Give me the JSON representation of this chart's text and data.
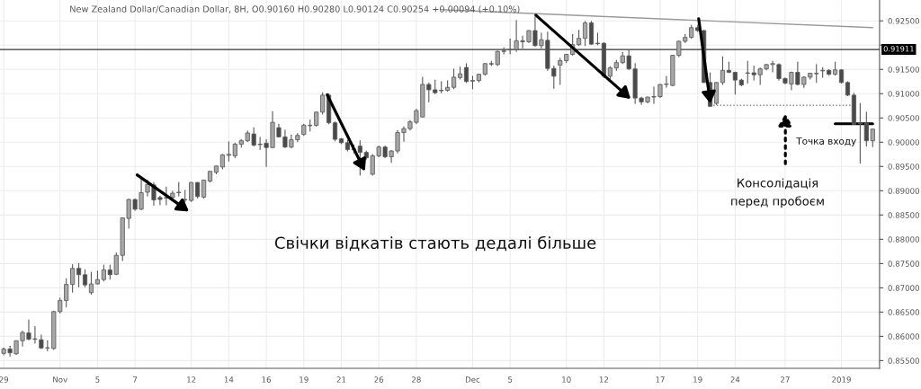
{
  "chart_data": {
    "type": "candlestick",
    "title": "New Zealand Dollar/Canadian Dollar, 8H, O0.90160 H0.90280 L0.90124 C0.90254 +0.00094 (+0.10%)",
    "categories": [
      "29",
      null,
      null,
      null,
      null,
      null,
      null,
      null,
      null,
      "Nov",
      null,
      null,
      null,
      null,
      null,
      "5",
      null,
      null,
      null,
      null,
      null,
      "7",
      null,
      null,
      null,
      null,
      null,
      null,
      null,
      null,
      "12",
      null,
      null,
      null,
      null,
      null,
      "14",
      null,
      null,
      null,
      null,
      null,
      "16",
      null,
      null,
      null,
      null,
      null,
      "19",
      null,
      null,
      null,
      null,
      null,
      "21",
      null,
      null,
      null,
      null,
      null,
      "26",
      null,
      null,
      null,
      null,
      null,
      "28",
      null,
      null,
      null,
      null,
      null,
      null,
      null,
      null,
      "Dec",
      null,
      null,
      null,
      null,
      null,
      "5",
      null,
      null,
      null,
      null,
      null,
      null,
      null,
      null,
      "10",
      null,
      null,
      null,
      null,
      null,
      "12",
      null,
      null,
      null,
      null,
      null,
      null,
      null,
      null,
      "17",
      null,
      null,
      null,
      null,
      null,
      "19",
      null,
      null,
      null,
      null,
      null,
      "24",
      null,
      null,
      null,
      null,
      null,
      null,
      null,
      "27",
      null,
      null,
      null,
      null,
      null,
      null,
      null,
      null,
      "2019",
      null,
      null,
      null,
      null,
      null
    ],
    "ohlc": [
      [
        0.8565,
        0.8576,
        0.8562,
        0.8574
      ],
      [
        0.8574,
        0.858,
        0.8559,
        0.8566
      ],
      [
        0.8564,
        0.8591,
        0.8563,
        0.8591
      ],
      [
        0.8591,
        0.8611,
        0.858,
        0.8608
      ],
      [
        0.8607,
        0.8634,
        0.8593,
        0.8594
      ],
      [
        0.8594,
        0.862,
        0.8586,
        0.8595
      ],
      [
        0.8593,
        0.8603,
        0.8575,
        0.8576
      ],
      [
        0.8576,
        0.8591,
        0.857,
        0.8576
      ],
      [
        0.8575,
        0.8652,
        0.8573,
        0.8651
      ],
      [
        0.8651,
        0.8679,
        0.8648,
        0.8674
      ],
      [
        0.8674,
        0.8719,
        0.8661,
        0.8707
      ],
      [
        0.8707,
        0.8748,
        0.8691,
        0.874
      ],
      [
        0.874,
        0.875,
        0.8702,
        0.8727
      ],
      [
        0.8727,
        0.8737,
        0.8702,
        0.8706
      ],
      [
        0.869,
        0.8732,
        0.8687,
        0.8708
      ],
      [
        0.8708,
        0.8735,
        0.8708,
        0.8717
      ],
      [
        0.8717,
        0.8747,
        0.8714,
        0.8737
      ],
      [
        0.8737,
        0.8747,
        0.8718,
        0.8727
      ],
      [
        0.8728,
        0.8772,
        0.8727,
        0.8767
      ],
      [
        0.8767,
        0.8844,
        0.8756,
        0.8844
      ],
      [
        0.8843,
        0.8883,
        0.8823,
        0.8882
      ],
      [
        0.8882,
        0.8883,
        0.886,
        0.8862
      ],
      [
        0.8862,
        0.8926,
        0.8861,
        0.8896
      ],
      [
        0.8897,
        0.8922,
        0.8889,
        0.8913
      ],
      [
        0.8912,
        0.8917,
        0.887,
        0.8881
      ],
      [
        0.8886,
        0.8889,
        0.8871,
        0.8882
      ],
      [
        0.8886,
        0.8908,
        0.8871,
        0.8885
      ],
      [
        0.8886,
        0.8899,
        0.888,
        0.8895
      ],
      [
        0.8896,
        0.8917,
        0.8889,
        0.8897
      ],
      [
        0.8882,
        0.8901,
        0.8877,
        0.8881
      ],
      [
        0.888,
        0.8917,
        0.8878,
        0.8917
      ],
      [
        0.8917,
        0.8917,
        0.8885,
        0.8888
      ],
      [
        0.8887,
        0.8922,
        0.8885,
        0.8922
      ],
      [
        0.892,
        0.894,
        0.8918,
        0.894
      ],
      [
        0.8938,
        0.8951,
        0.8935,
        0.8951
      ],
      [
        0.8949,
        0.8975,
        0.8945,
        0.8974
      ],
      [
        0.8973,
        0.9001,
        0.8961,
        0.8975
      ],
      [
        0.8972,
        0.8998,
        0.8968,
        0.8996
      ],
      [
        0.8996,
        0.9005,
        0.899,
        0.9003
      ],
      [
        0.9003,
        0.9023,
        0.9001,
        0.9019
      ],
      [
        0.9017,
        0.903,
        0.8992,
        0.8994
      ],
      [
        0.8996,
        0.901,
        0.8985,
        0.8995
      ],
      [
        0.8998,
        0.9005,
        0.895,
        0.8989
      ],
      [
        0.8989,
        0.9063,
        0.8989,
        0.9041
      ],
      [
        0.903,
        0.9037,
        0.9011,
        0.9011
      ],
      [
        0.9011,
        0.9025,
        0.8989,
        0.899
      ],
      [
        0.899,
        0.9015,
        0.8988,
        0.9005
      ],
      [
        0.9005,
        0.9018,
        0.9001,
        0.9014
      ],
      [
        0.9016,
        0.9037,
        0.9014,
        0.9035
      ],
      [
        0.9034,
        0.9046,
        0.9023,
        0.9035
      ],
      [
        0.9035,
        0.9062,
        0.9033,
        0.9062
      ],
      [
        0.9062,
        0.9102,
        0.9058,
        0.9097
      ],
      [
        0.9097,
        0.91,
        0.9038,
        0.904
      ],
      [
        0.904,
        0.9042,
        0.9003,
        0.9006
      ],
      [
        0.9007,
        0.9008,
        0.8997,
        0.8999
      ],
      [
        0.8999,
        0.9004,
        0.8982,
        0.8985
      ],
      [
        0.8986,
        0.8994,
        0.8978,
        0.8985
      ],
      [
        0.8992,
        0.9003,
        0.8932,
        0.8979
      ],
      [
        0.8979,
        0.8982,
        0.8965,
        0.8968
      ],
      [
        0.8934,
        0.8975,
        0.8932,
        0.8972
      ],
      [
        0.8972,
        0.8992,
        0.897,
        0.899
      ],
      [
        0.899,
        0.8992,
        0.8968,
        0.897
      ],
      [
        0.897,
        0.8983,
        0.8958,
        0.8982
      ],
      [
        0.8982,
        0.9024,
        0.8978,
        0.902
      ],
      [
        0.902,
        0.9032,
        0.9002,
        0.9028
      ],
      [
        0.9028,
        0.9045,
        0.9025,
        0.9042
      ],
      [
        0.9041,
        0.9068,
        0.9038,
        0.9065
      ],
      [
        0.9052,
        0.9134,
        0.9052,
        0.9119
      ],
      [
        0.9119,
        0.9122,
        0.9083,
        0.9108
      ],
      [
        0.9108,
        0.9128,
        0.91,
        0.9102
      ],
      [
        0.9106,
        0.9125,
        0.9102,
        0.9107
      ],
      [
        0.9107,
        0.9127,
        0.9105,
        0.9113
      ],
      [
        0.9113,
        0.9151,
        0.911,
        0.9134
      ],
      [
        0.9133,
        0.9155,
        0.913,
        0.9141
      ],
      [
        0.9154,
        0.9162,
        0.9123,
        0.9125
      ],
      [
        0.9127,
        0.9136,
        0.911,
        0.9126
      ],
      [
        0.9127,
        0.914,
        0.9124,
        0.914
      ],
      [
        0.914,
        0.9162,
        0.9138,
        0.9162
      ],
      [
        0.9162,
        0.9167,
        0.9158,
        0.9161
      ],
      [
        0.916,
        0.9188,
        0.9158,
        0.9187
      ],
      [
        0.9187,
        0.9195,
        0.9182,
        0.9188
      ],
      [
        0.919,
        0.9213,
        0.9182,
        0.9191
      ],
      [
        0.9191,
        0.9251,
        0.9187,
        0.9209
      ],
      [
        0.9209,
        0.9219,
        0.9194,
        0.9207
      ],
      [
        0.9207,
        0.923,
        0.9205,
        0.923
      ],
      [
        0.923,
        0.9258,
        0.9198,
        0.9199
      ],
      [
        0.9199,
        0.9225,
        0.9194,
        0.9211
      ],
      [
        0.921,
        0.9227,
        0.9148,
        0.9152
      ],
      [
        0.9152,
        0.9157,
        0.9111,
        0.9136
      ],
      [
        0.9159,
        0.9173,
        0.9119,
        0.9168
      ],
      [
        0.9168,
        0.9181,
        0.9164,
        0.9181
      ],
      [
        0.9181,
        0.9222,
        0.9179,
        0.9201
      ],
      [
        0.9201,
        0.9231,
        0.9199,
        0.9214
      ],
      [
        0.9214,
        0.9249,
        0.9199,
        0.9246
      ],
      [
        0.9246,
        0.9249,
        0.9202,
        0.9202
      ],
      [
        0.9204,
        0.9225,
        0.9201,
        0.9203
      ],
      [
        0.9204,
        0.9205,
        0.9133,
        0.9136
      ],
      [
        0.9136,
        0.9156,
        0.9131,
        0.9153
      ],
      [
        0.9153,
        0.9169,
        0.9148,
        0.9164
      ],
      [
        0.9164,
        0.9185,
        0.9162,
        0.9178
      ],
      [
        0.9178,
        0.9189,
        0.915,
        0.9151
      ],
      [
        0.9151,
        0.9162,
        0.908,
        0.9091
      ],
      [
        0.9091,
        0.9093,
        0.9078,
        0.9083
      ],
      [
        0.9083,
        0.9093,
        0.9081,
        0.9093
      ],
      [
        0.9093,
        0.9114,
        0.908,
        0.9094
      ],
      [
        0.9094,
        0.9119,
        0.9092,
        0.9119
      ],
      [
        0.9119,
        0.9136,
        0.9113,
        0.912
      ],
      [
        0.9117,
        0.9179,
        0.9116,
        0.9179
      ],
      [
        0.9179,
        0.9208,
        0.9176,
        0.9208
      ],
      [
        0.9208,
        0.9222,
        0.9205,
        0.9216
      ],
      [
        0.9216,
        0.9241,
        0.9214,
        0.9236
      ],
      [
        0.9236,
        0.9241,
        0.9228,
        0.923
      ],
      [
        0.923,
        0.9231,
        0.9123,
        0.9123
      ],
      [
        0.9123,
        0.9143,
        0.9074,
        0.9074
      ],
      [
        0.908,
        0.9123,
        0.9078,
        0.9123
      ],
      [
        0.9123,
        0.9176,
        0.9119,
        0.9148
      ],
      [
        0.9148,
        0.9165,
        0.9143,
        0.9144
      ],
      [
        0.9144,
        0.9145,
        0.9099,
        0.9128
      ],
      [
        0.9128,
        0.913,
        0.9116,
        0.9118
      ],
      [
        0.9142,
        0.9167,
        0.9122,
        0.9143
      ],
      [
        0.9143,
        0.9157,
        0.9128,
        0.9139
      ],
      [
        0.9139,
        0.9153,
        0.9119,
        0.9151
      ],
      [
        0.9151,
        0.916,
        0.9149,
        0.916
      ],
      [
        0.916,
        0.9167,
        0.9145,
        0.9162
      ],
      [
        0.916,
        0.9162,
        0.9128,
        0.9131
      ],
      [
        0.9131,
        0.9133,
        0.912,
        0.9122
      ],
      [
        0.912,
        0.9145,
        0.9108,
        0.9144
      ],
      [
        0.9144,
        0.9165,
        0.9118,
        0.9119
      ],
      [
        0.9119,
        0.9135,
        0.9113,
        0.9134
      ],
      [
        0.9134,
        0.9142,
        0.913,
        0.9142
      ],
      [
        0.9141,
        0.916,
        0.9123,
        0.9142
      ],
      [
        0.9147,
        0.9154,
        0.9134,
        0.9148
      ],
      [
        0.9148,
        0.915,
        0.9138,
        0.914
      ],
      [
        0.914,
        0.9165,
        0.9138,
        0.9149
      ],
      [
        0.9149,
        0.915,
        0.9122,
        0.9123
      ],
      [
        0.9123,
        0.9125,
        0.9096,
        0.9097
      ],
      [
        0.9097,
        0.9101,
        0.9037,
        0.9037
      ],
      [
        0.9039,
        0.908,
        0.8957,
        0.9038
      ],
      [
        0.9039,
        0.9062,
        0.8992,
        0.9003
      ],
      [
        0.9003,
        0.9027,
        0.8991,
        0.9027
      ]
    ],
    "series": [
      {
        "type": "line",
        "color": "#9a9a9a",
        "line_style": "solid",
        "values": [
          null,
          null,
          null,
          null,
          null,
          null,
          null,
          null,
          null,
          null,
          null,
          null,
          null,
          null,
          null,
          null,
          null,
          null,
          null,
          null,
          null,
          null,
          null,
          null,
          null,
          null,
          null,
          null,
          null,
          null,
          null,
          null,
          null,
          null,
          null,
          null,
          null,
          null,
          null,
          null,
          null,
          null,
          null,
          null,
          null,
          null,
          null,
          null,
          null,
          null,
          null,
          null,
          null,
          null,
          null,
          null,
          null,
          null,
          null,
          null,
          null,
          null,
          null,
          null,
          null,
          null,
          null,
          null,
          null,
          null,
          0.9273,
          null,
          null,
          null,
          null,
          null,
          null,
          null,
          null,
          null,
          null,
          null,
          null,
          null,
          null,
          null,
          null,
          null,
          null,
          null,
          null,
          null,
          null,
          null,
          null,
          null,
          null,
          null,
          null,
          null,
          null,
          null,
          null,
          null,
          null,
          null,
          null,
          null,
          null,
          null,
          null,
          null,
          null,
          null,
          null,
          null,
          null,
          null,
          null,
          null,
          null,
          null,
          null,
          null,
          null,
          null,
          null,
          null,
          null,
          null,
          null,
          null,
          null,
          null,
          null,
          null,
          null,
          null,
          null,
          0.9236
        ]
      },
      {
        "type": "line",
        "color": "#888888",
        "line_style": "dotted",
        "values": [
          null,
          null,
          null,
          null,
          null,
          null,
          null,
          null,
          null,
          null,
          null,
          null,
          null,
          null,
          null,
          null,
          null,
          null,
          null,
          null,
          null,
          null,
          null,
          null,
          null,
          null,
          null,
          null,
          null,
          null,
          null,
          null,
          null,
          null,
          null,
          null,
          null,
          null,
          null,
          null,
          null,
          null,
          null,
          null,
          null,
          null,
          null,
          null,
          null,
          null,
          null,
          null,
          null,
          null,
          null,
          null,
          null,
          null,
          null,
          null,
          null,
          null,
          null,
          null,
          null,
          null,
          null,
          null,
          null,
          null,
          null,
          null,
          null,
          null,
          null,
          null,
          null,
          null,
          null,
          null,
          null,
          null,
          null,
          null,
          null,
          null,
          null,
          null,
          null,
          null,
          null,
          null,
          null,
          null,
          null,
          null,
          null,
          null,
          null,
          null,
          null,
          null,
          null,
          null,
          null,
          null,
          null,
          null,
          null,
          null,
          null,
          null,
          null,
          0.9076,
          0.9076,
          0.9076,
          0.9076,
          0.9076,
          0.9076,
          0.9076,
          0.9076,
          0.9076,
          0.9076,
          0.9076,
          0.9076,
          0.9076,
          0.9076,
          0.9076,
          0.9076,
          0.9076,
          0.9076,
          0.9076,
          0.9076,
          0.9076,
          0.9076,
          0.9076,
          0.9076,
          null,
          null,
          null
        ]
      },
      {
        "type": "line",
        "color": "#000000",
        "line_style": "solid",
        "values": [
          null,
          null,
          null,
          null,
          null,
          null,
          null,
          null,
          null,
          null,
          null,
          null,
          null,
          null,
          null,
          null,
          null,
          null,
          null,
          null,
          null,
          null,
          null,
          null,
          null,
          null,
          null,
          null,
          null,
          null,
          null,
          null,
          null,
          null,
          null,
          null,
          null,
          null,
          null,
          null,
          null,
          null,
          null,
          null,
          null,
          null,
          null,
          null,
          null,
          null,
          null,
          null,
          null,
          null,
          null,
          null,
          null,
          null,
          null,
          null,
          null,
          null,
          null,
          null,
          null,
          null,
          null,
          null,
          null,
          null,
          null,
          null,
          null,
          null,
          null,
          null,
          null,
          null,
          null,
          null,
          null,
          null,
          null,
          null,
          null,
          null,
          null,
          null,
          null,
          null,
          null,
          null,
          null,
          null,
          null,
          null,
          null,
          null,
          null,
          null,
          null,
          null,
          null,
          null,
          null,
          null,
          null,
          null,
          null,
          null,
          null,
          null,
          null,
          null,
          null,
          null,
          null,
          null,
          null,
          null,
          null,
          null,
          null,
          null,
          null,
          null,
          null,
          null,
          null,
          null,
          null,
          null,
          null,
          0.9038,
          0.9038,
          0.9038,
          0.9038,
          0.9038,
          0.9038,
          0.9038
        ]
      }
    ],
    "ylim": [
      0.8534,
      0.9293
    ],
    "yticks": [
      {
        "value": 0.855,
        "label": "0.85500"
      },
      {
        "value": 0.86,
        "label": "0.86000"
      },
      {
        "value": 0.865,
        "label": "0.86500"
      },
      {
        "value": 0.87,
        "label": "0.87000"
      },
      {
        "value": 0.875,
        "label": "0.87500"
      },
      {
        "value": 0.88,
        "label": "0.88000"
      },
      {
        "value": 0.885,
        "label": "0.88500"
      },
      {
        "value": 0.89,
        "label": "0.89000"
      },
      {
        "value": 0.895,
        "label": "0.89500"
      },
      {
        "value": 0.9,
        "label": "0.90000"
      },
      {
        "value": 0.905,
        "label": "0.90500"
      },
      {
        "value": 0.91,
        "label": "0.91000"
      },
      {
        "value": 0.915,
        "label": "0.91500"
      },
      {
        "value": 0.92,
        "label": null
      },
      {
        "value": 0.925,
        "label": "0.92500"
      }
    ],
    "ref_lines": [
      {
        "axis": "y",
        "value": 0.91911,
        "label": "0.91911",
        "color": "#333333"
      }
    ],
    "annotations": [
      "Свічки відкатів стають дедалі більше",
      "Консолідація\nперед пробоєм",
      "Точка входу"
    ],
    "grid": true
  }
}
